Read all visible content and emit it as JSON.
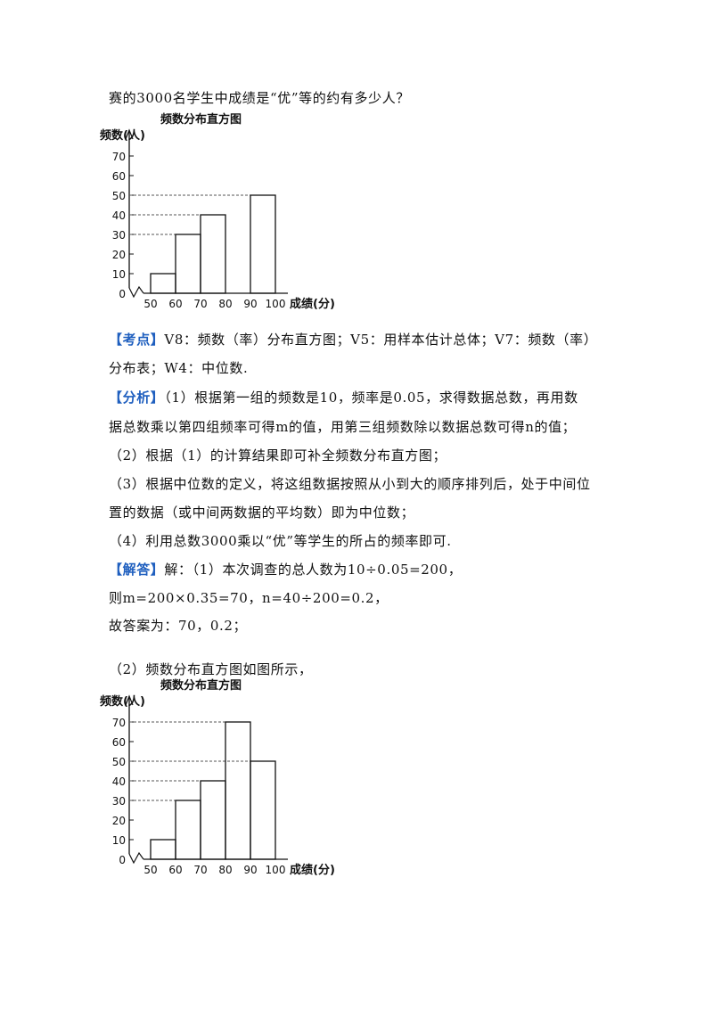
{
  "doc": {
    "line0": "赛的3000名学生中成绩是“优”等的约有多少人？",
    "kaodian_tag": "【考点】",
    "kaodian_1": "V8：频数（率）分布直方图；V5：用样本估计总体；V7：频数（率）",
    "kaodian_2": "分布表；W4：中位数.",
    "fenxi_tag": "【分析】",
    "fenxi_1": "（1）根据第一组的频数是10，频率是0.05，求得数据总数，再用数",
    "fenxi_2": "据总数乘以第四组频率可得m的值，用第三组频数除以数据总数可得n的值；",
    "fenxi_3": "（2）根据（1）的计算结果即可补全频数分布直方图；",
    "fenxi_4": "（3）根据中位数的定义，将这组数据按照从小到大的顺序排列后，处于中间位",
    "fenxi_5": "置的数据（或中间两数据的平均数）即为中位数；",
    "fenxi_6": "（4）利用总数3000乘以“优”等学生的所占的频率即可.",
    "jieda_tag": "【解答】",
    "jieda_1": "解：（1）本次调查的总人数为10÷0.05=200，",
    "jieda_2": "则m=200×0.35=70，n=40÷200=0.2，",
    "jieda_3": "故答案为：70，0.2；",
    "jieda_4": "（2）频数分布直方图如图所示，"
  },
  "chart_data": [
    {
      "type": "bar",
      "title": "频数分布直方图",
      "ylabel": "频数(人)",
      "xlabel": "成绩(分)",
      "bin_edges": [
        50,
        60,
        70,
        80,
        90,
        100
      ],
      "x_tick_labels": [
        "50",
        "60",
        "70",
        "80",
        "90",
        "100"
      ],
      "values": [
        10,
        30,
        40,
        null,
        50
      ],
      "y_ticks": [
        0,
        10,
        20,
        30,
        40,
        50,
        60,
        70
      ],
      "y_tick_labels": [
        "0",
        "10",
        "20",
        "30",
        "40",
        "50",
        "60",
        "70"
      ],
      "ylim": [
        0,
        70
      ],
      "dashed_guides": [
        30,
        40,
        50
      ]
    },
    {
      "type": "bar",
      "title": "频数分布直方图",
      "ylabel": "频数(人)",
      "xlabel": "成绩(分)",
      "bin_edges": [
        50,
        60,
        70,
        80,
        90,
        100
      ],
      "x_tick_labels": [
        "50",
        "60",
        "70",
        "80",
        "90",
        "100"
      ],
      "values": [
        10,
        30,
        40,
        70,
        50
      ],
      "y_ticks": [
        0,
        10,
        20,
        30,
        40,
        50,
        60,
        70
      ],
      "y_tick_labels": [
        "0",
        "10",
        "20",
        "30",
        "40",
        "50",
        "60",
        "70"
      ],
      "ylim": [
        0,
        70
      ],
      "dashed_guides": [
        30,
        40,
        50,
        70
      ]
    }
  ]
}
